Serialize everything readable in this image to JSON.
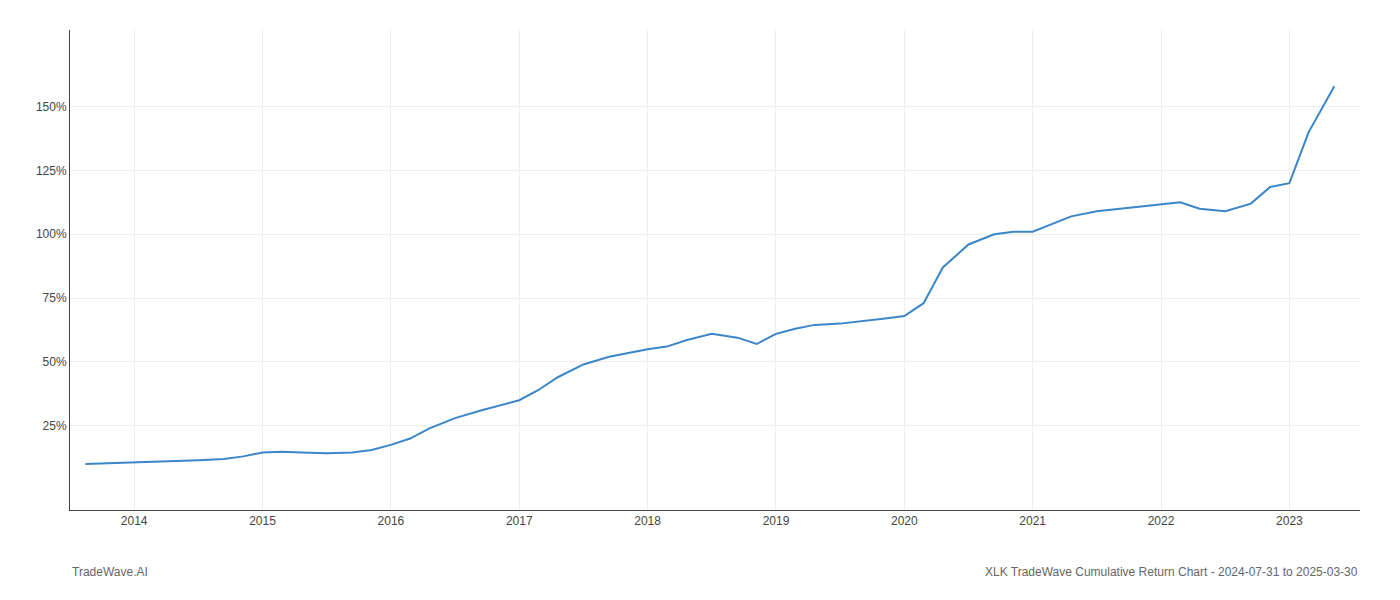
{
  "chart_data": {
    "type": "line",
    "annotations": [
      "TradeWave.AI",
      "XLK TradeWave Cumulative Return Chart - 2024-07-31 to 2025-03-30"
    ],
    "x": [
      2013.62,
      2013.75,
      2013.88,
      2014.0,
      2014.15,
      2014.3,
      2014.5,
      2014.7,
      2014.85,
      2015.0,
      2015.15,
      2015.3,
      2015.5,
      2015.7,
      2015.85,
      2016.0,
      2016.15,
      2016.3,
      2016.5,
      2016.7,
      2016.85,
      2017.0,
      2017.15,
      2017.3,
      2017.5,
      2017.7,
      2017.85,
      2018.0,
      2018.15,
      2018.3,
      2018.5,
      2018.7,
      2018.85,
      2019.0,
      2019.15,
      2019.3,
      2019.5,
      2019.7,
      2019.85,
      2020.0,
      2020.15,
      2020.3,
      2020.5,
      2020.7,
      2020.85,
      2021.0,
      2021.15,
      2021.3,
      2021.5,
      2021.7,
      2021.85,
      2022.0,
      2022.15,
      2022.3,
      2022.5,
      2022.7,
      2022.85,
      2023.0,
      2023.15,
      2023.35
    ],
    "values": [
      10.0,
      10.2,
      10.5,
      10.8,
      11.0,
      11.2,
      11.5,
      12.0,
      13.0,
      14.5,
      14.8,
      14.5,
      14.2,
      14.5,
      15.5,
      17.5,
      20.0,
      24.0,
      28.0,
      31.0,
      33.0,
      35.0,
      39.0,
      44.0,
      49.0,
      52.0,
      53.5,
      55.0,
      56.0,
      58.5,
      61.0,
      59.5,
      57.0,
      61.0,
      63.0,
      64.5,
      65.0,
      66.0,
      67.0,
      68.0,
      73.0,
      87.0,
      96.0,
      100.0,
      101.0,
      101.0,
      104.0,
      107.0,
      109.0,
      110.0,
      111.0,
      111.5,
      112.5,
      110.0,
      109.0,
      112.0,
      118.5,
      120.0,
      140.0,
      158.0
    ],
    "color": "#3a86c8",
    "xlim": [
      2013.5,
      2023.55
    ],
    "xticks": [
      2014,
      2015,
      2016,
      2017,
      2018,
      2019,
      2020,
      2021,
      2022,
      2023
    ],
    "ylim": [
      -8,
      180
    ],
    "yticks": [
      {
        "value": 25,
        "label": "25%"
      },
      {
        "value": 50,
        "label": "50%"
      },
      {
        "value": 75,
        "label": "75%"
      },
      {
        "value": 100,
        "label": "100%"
      },
      {
        "value": 125,
        "label": "125%"
      },
      {
        "value": 150,
        "label": "150%"
      }
    ],
    "grid": true
  }
}
